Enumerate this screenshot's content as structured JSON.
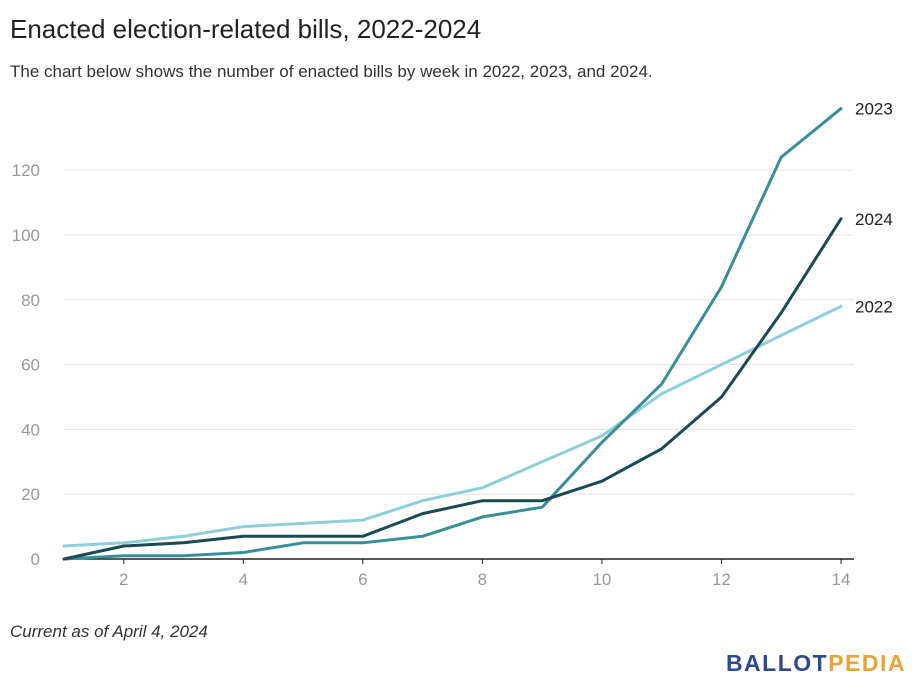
{
  "header": {
    "title": "Enacted election-related bills, 2022-2024",
    "subtitle": "The chart below shows the number of enacted bills by week in 2022, 2023, and 2024."
  },
  "footnote": "Current as of April 4, 2024",
  "logo": {
    "part1": "BALLOT",
    "part2": "PEDIA",
    "colors": {
      "ballot": "#2e4a8c",
      "pedia": "#e8a33a"
    }
  },
  "chart_data": {
    "type": "line",
    "title": "Enacted election-related bills, 2022-2024",
    "subtitle": "The chart below shows the number of enacted bills by week in 2022, 2023, and 2024.",
    "xlabel": "",
    "ylabel": "",
    "x": [
      1,
      2,
      3,
      4,
      5,
      6,
      7,
      8,
      9,
      10,
      11,
      12,
      13,
      14
    ],
    "xlim": [
      1,
      14
    ],
    "ylim": [
      0,
      140
    ],
    "xticks": [
      2,
      4,
      6,
      8,
      10,
      12,
      14
    ],
    "yticks": [
      0,
      20,
      40,
      60,
      80,
      100,
      120
    ],
    "grid": "horizontal",
    "legend": "direct labels at line ends (right)",
    "series": [
      {
        "name": "2022",
        "color": "#8fcfd6",
        "values": [
          4,
          5,
          7,
          10,
          11,
          12,
          18,
          22,
          30,
          38,
          51,
          60,
          69,
          78
        ]
      },
      {
        "name": "2023",
        "color": "#3a8e96",
        "values": [
          0,
          1,
          1,
          2,
          5,
          5,
          7,
          13,
          16,
          36,
          54,
          84,
          124,
          139
        ]
      },
      {
        "name": "2024",
        "color": "#1b4a52",
        "values": [
          0,
          4,
          5,
          7,
          7,
          7,
          14,
          18,
          18,
          24,
          34,
          50,
          76,
          105
        ]
      }
    ]
  }
}
